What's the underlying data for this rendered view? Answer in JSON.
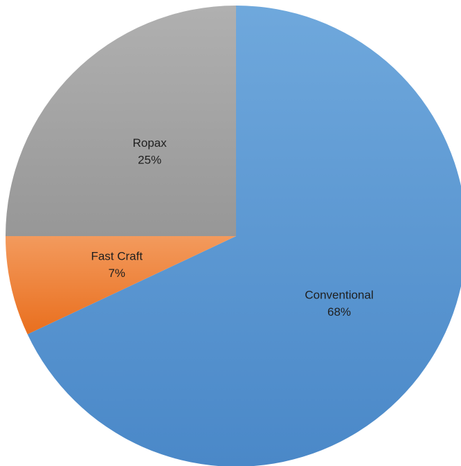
{
  "chart_data": {
    "type": "pie",
    "title": "",
    "slices": [
      {
        "label": "Conventional",
        "value": 68,
        "value_label": "68%",
        "color": "#5B9BD5",
        "gradient": [
          "#6FA8DC",
          "#4A88C8"
        ]
      },
      {
        "label": "Fast Craft",
        "value": 7,
        "value_label": "7%",
        "color": "#ED7D31",
        "gradient": [
          "#F39A5D",
          "#E96F1E"
        ]
      },
      {
        "label": "Ropax",
        "value": 25,
        "value_label": "25%",
        "color": "#A5A5A5",
        "gradient": [
          "#B0B0B0",
          "#979797"
        ]
      }
    ],
    "start_angle_deg": 0,
    "direction": "clockwise",
    "legend": "none",
    "data_labels": "inside"
  }
}
